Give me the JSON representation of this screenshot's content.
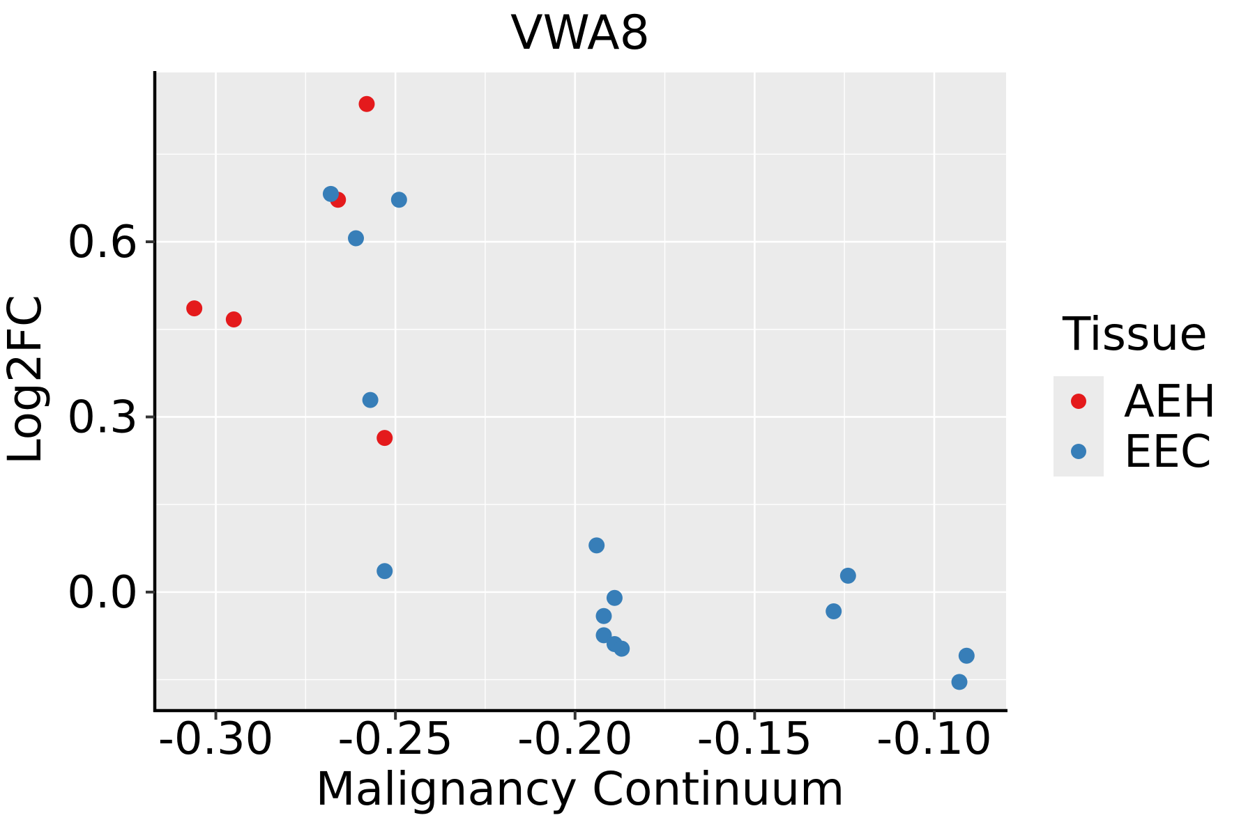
{
  "chart_data": {
    "type": "scatter",
    "title": "VWA8",
    "xlabel": "Malignancy Continuum",
    "ylabel": "Log2FC",
    "xlim": [
      -0.317,
      -0.08
    ],
    "ylim": [
      -0.203,
      0.89
    ],
    "x_ticks": {
      "values": [
        -0.3,
        -0.25,
        -0.2,
        -0.15,
        -0.1
      ],
      "labels": [
        "-0.30",
        "-0.25",
        "-0.20",
        "-0.15",
        "-0.10"
      ]
    },
    "y_ticks": {
      "values": [
        0.0,
        0.3,
        0.6
      ],
      "labels": [
        "0.0",
        "0.3",
        "0.6"
      ]
    },
    "grid": {
      "major": true,
      "minor": true,
      "position": "white lines on gray panel"
    },
    "legend": {
      "title": "Tissue",
      "position": "right"
    },
    "series": [
      {
        "name": "AEH",
        "color": "#e41a1c",
        "points": [
          [
            -0.306,
            0.486
          ],
          [
            -0.295,
            0.467
          ],
          [
            -0.266,
            0.672
          ],
          [
            -0.258,
            0.836
          ],
          [
            -0.253,
            0.264
          ]
        ]
      },
      {
        "name": "EEC",
        "color": "#377eb8",
        "points": [
          [
            -0.268,
            0.682
          ],
          [
            -0.249,
            0.672
          ],
          [
            -0.261,
            0.606
          ],
          [
            -0.257,
            0.329
          ],
          [
            -0.253,
            0.036
          ],
          [
            -0.194,
            0.08
          ],
          [
            -0.189,
            -0.01
          ],
          [
            -0.192,
            -0.041
          ],
          [
            -0.192,
            -0.074
          ],
          [
            -0.189,
            -0.089
          ],
          [
            -0.187,
            -0.097
          ],
          [
            -0.124,
            0.028
          ],
          [
            -0.128,
            -0.033
          ],
          [
            -0.091,
            -0.109
          ],
          [
            -0.093,
            -0.154
          ]
        ]
      }
    ]
  },
  "styles": {
    "panel_background": "#ebebeb",
    "grid_color": "#ffffff",
    "axis_line_color": "#000000",
    "tick_mark_color": "#333333",
    "text_color": "#000000",
    "aeh_color": "#e41a1c",
    "eec_color": "#377eb8"
  }
}
